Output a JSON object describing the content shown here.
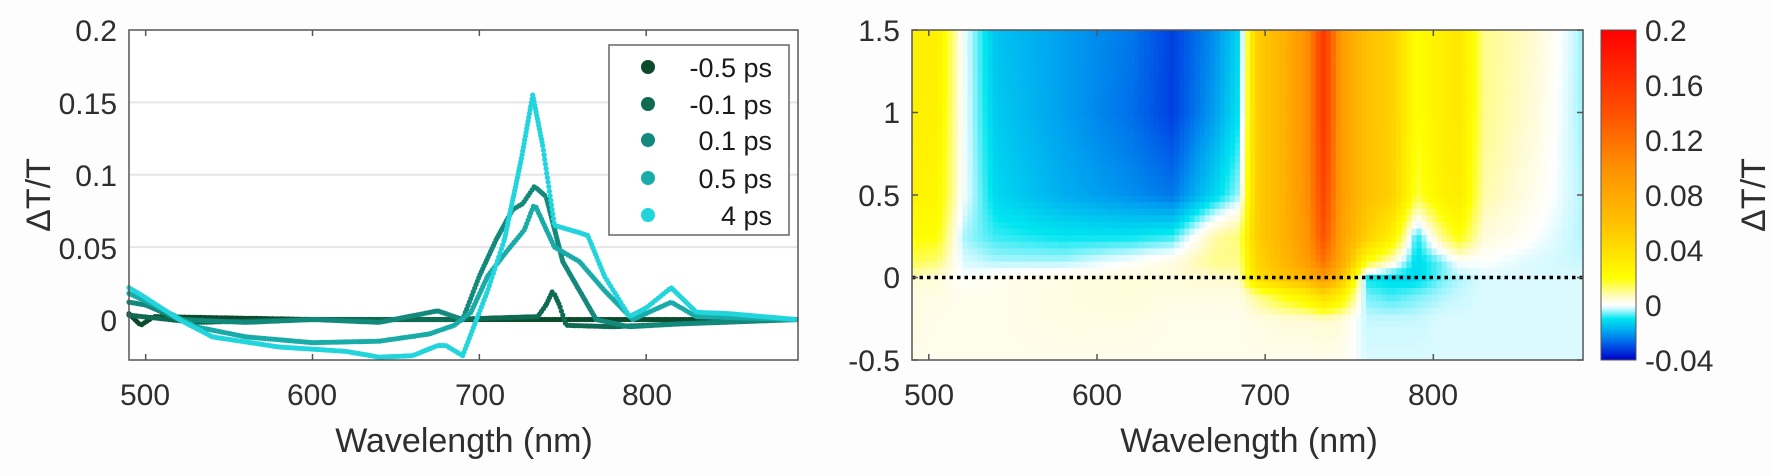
{
  "chart_data": [
    {
      "type": "scatter",
      "xlabel": "Wavelength (nm)",
      "ylabel": "ΔT/T",
      "xlim": [
        490,
        891
      ],
      "ylim": [
        -0.028,
        0.2
      ],
      "xticks": [
        500,
        600,
        700,
        800
      ],
      "yticks": [
        0,
        0.05,
        0.1,
        0.15,
        0.2
      ],
      "ytick_labels": [
        "0",
        "0.05",
        "0.1",
        "0.15",
        "0.2"
      ],
      "grid": "horizontal",
      "legend_position": "top-right",
      "series": [
        {
          "name": "-0.5 ps",
          "color": "#0b4a2c",
          "x": [
            490,
            497,
            505,
            600,
            700,
            800,
            890
          ],
          "y": [
            0.004,
            -0.004,
            0.002,
            0.0,
            0.0,
            0.0,
            0.0
          ]
        },
        {
          "name": "-0.1 ps",
          "color": "#0f6a52",
          "x": [
            490,
            530,
            600,
            680,
            735,
            740,
            744,
            748,
            752,
            780,
            820,
            890
          ],
          "y": [
            0.003,
            -0.002,
            0.0,
            0.0,
            0.002,
            0.01,
            0.02,
            0.01,
            -0.004,
            -0.005,
            -0.003,
            0.0
          ]
        },
        {
          "name": "0.1 ps",
          "color": "#12897b",
          "x": [
            490,
            500,
            520,
            560,
            600,
            640,
            675,
            690,
            700,
            710,
            720,
            726,
            733,
            740,
            750,
            760,
            770,
            790,
            820,
            890
          ],
          "y": [
            0.012,
            0.01,
            0.0,
            -0.002,
            0.0,
            -0.002,
            0.006,
            0.0,
            0.03,
            0.055,
            0.076,
            0.08,
            0.092,
            0.085,
            0.04,
            0.02,
            0.0,
            -0.005,
            -0.003,
            0.0
          ]
        },
        {
          "name": "0.5 ps",
          "color": "#19aba8",
          "x": [
            490,
            505,
            530,
            560,
            600,
            640,
            670,
            685,
            695,
            705,
            715,
            727,
            733,
            745,
            760,
            775,
            792,
            815,
            830,
            890
          ],
          "y": [
            0.018,
            0.01,
            -0.005,
            -0.012,
            -0.016,
            -0.015,
            -0.01,
            -0.004,
            0.005,
            0.03,
            0.045,
            0.062,
            0.08,
            0.05,
            0.04,
            0.02,
            0.0,
            0.012,
            0.002,
            0.0
          ]
        },
        {
          "name": "4 ps",
          "color": "#22d4dc",
          "x": [
            490,
            500,
            520,
            540,
            580,
            620,
            640,
            660,
            675,
            680,
            690,
            695,
            705,
            715,
            725,
            732,
            738,
            745,
            760,
            765,
            775,
            790,
            800,
            815,
            830,
            850,
            890
          ],
          "y": [
            0.022,
            0.015,
            0.0,
            -0.012,
            -0.019,
            -0.022,
            -0.026,
            -0.025,
            -0.018,
            -0.018,
            -0.025,
            -0.01,
            0.02,
            0.055,
            0.11,
            0.155,
            0.12,
            0.065,
            0.06,
            0.058,
            0.03,
            0.002,
            0.008,
            0.022,
            0.005,
            0.004,
            0.0
          ]
        }
      ]
    },
    {
      "type": "heatmap",
      "xlabel": "Wavelength (nm)",
      "ylabel": "",
      "colorbar_label": "ΔT/T",
      "xlim": [
        490,
        889
      ],
      "ylim": [
        -0.5,
        1.5
      ],
      "xticks": [
        500,
        600,
        700,
        800
      ],
      "yticks": [
        -0.5,
        0,
        0.5,
        1,
        1.5
      ],
      "ytick_labels": [
        "-0.5",
        "0",
        "0.5",
        "1",
        "1.5"
      ],
      "clim": [
        -0.04,
        0.2
      ],
      "colorbar_ticks": [
        "-0.04",
        "0",
        "0.04",
        "0.08",
        "0.12",
        "0.16",
        "0.2"
      ],
      "colorbar_tick_values": [
        -0.04,
        0,
        0.04,
        0.08,
        0.12,
        0.16,
        0.2
      ],
      "colormap": [
        [
          -0.04,
          "#0000c8"
        ],
        [
          -0.03,
          "#0050e6"
        ],
        [
          -0.02,
          "#00a0f0"
        ],
        [
          -0.01,
          "#00e6f0"
        ],
        [
          -0.003,
          "#c8f8ff"
        ],
        [
          0,
          "#ffffff"
        ],
        [
          0.005,
          "#fffbd0"
        ],
        [
          0.02,
          "#ffff00"
        ],
        [
          0.06,
          "#ffc000"
        ],
        [
          0.1,
          "#ff9000"
        ],
        [
          0.14,
          "#ff5000"
        ],
        [
          0.2,
          "#ff0000"
        ]
      ],
      "reference_line_y": 0,
      "wavelengths": [
        490,
        505,
        520,
        540,
        580,
        620,
        645,
        670,
        685,
        695,
        710,
        725,
        735,
        745,
        760,
        775,
        790,
        805,
        815,
        830,
        860,
        890
      ],
      "delays": [
        -0.5,
        -0.25,
        -0.1,
        0,
        0.1,
        0.25,
        0.5,
        1.0,
        1.5
      ],
      "values": [
        [
          0.002,
          0.002,
          0.002,
          0.002,
          0.002,
          0.002,
          0.002,
          0.002,
          0.002,
          0.002,
          0.002,
          0.002,
          0.002,
          0.002,
          -0.002,
          -0.002,
          -0.002,
          -0.002,
          -0.002,
          -0.002,
          -0.002,
          -0.002
        ],
        [
          0.003,
          0.002,
          0.002,
          0.002,
          0.003,
          0.003,
          0.002,
          0.002,
          0.002,
          0.003,
          0.004,
          0.004,
          0.005,
          0.004,
          -0.003,
          -0.003,
          -0.003,
          -0.002,
          -0.002,
          -0.002,
          -0.002,
          -0.002
        ],
        [
          0.003,
          0.003,
          0.002,
          0.002,
          0.003,
          0.004,
          0.003,
          0.003,
          0.003,
          0.01,
          0.02,
          0.03,
          0.045,
          0.03,
          -0.006,
          -0.008,
          -0.006,
          -0.004,
          -0.003,
          -0.002,
          -0.002,
          -0.002
        ],
        [
          0.005,
          0.004,
          0.0,
          0.002,
          0.003,
          0.004,
          0.004,
          0.005,
          0.006,
          0.04,
          0.055,
          0.07,
          0.09,
          0.06,
          -0.01,
          -0.012,
          -0.012,
          -0.006,
          -0.004,
          -0.002,
          -0.002,
          -0.002
        ],
        [
          0.015,
          0.012,
          -0.002,
          -0.004,
          -0.004,
          0.0,
          0.003,
          0.01,
          0.01,
          0.045,
          0.065,
          0.09,
          0.12,
          0.08,
          0.02,
          0.005,
          -0.012,
          -0.006,
          0.0,
          0.0,
          -0.002,
          -0.003
        ],
        [
          0.02,
          0.02,
          -0.004,
          -0.008,
          -0.01,
          -0.01,
          -0.008,
          0.008,
          0.012,
          0.05,
          0.07,
          0.095,
          0.14,
          0.085,
          0.05,
          0.03,
          -0.01,
          0.01,
          0.02,
          0.004,
          0.0,
          -0.004
        ],
        [
          0.028,
          0.025,
          0.0,
          -0.012,
          -0.018,
          -0.022,
          -0.025,
          -0.012,
          -0.004,
          0.05,
          0.07,
          0.1,
          0.15,
          0.09,
          0.06,
          0.05,
          0.015,
          0.028,
          0.032,
          0.008,
          0.002,
          -0.004
        ],
        [
          0.03,
          0.028,
          0.0,
          -0.014,
          -0.02,
          -0.026,
          -0.032,
          -0.02,
          -0.01,
          0.05,
          0.07,
          0.1,
          0.16,
          0.09,
          0.06,
          0.05,
          0.02,
          0.03,
          0.035,
          0.01,
          0.004,
          -0.005
        ],
        [
          0.03,
          0.03,
          0.0,
          -0.015,
          -0.02,
          -0.025,
          -0.032,
          -0.022,
          -0.012,
          0.05,
          0.07,
          0.1,
          0.16,
          0.09,
          0.06,
          0.05,
          0.02,
          0.03,
          0.035,
          0.01,
          0.005,
          -0.005
        ]
      ]
    }
  ]
}
